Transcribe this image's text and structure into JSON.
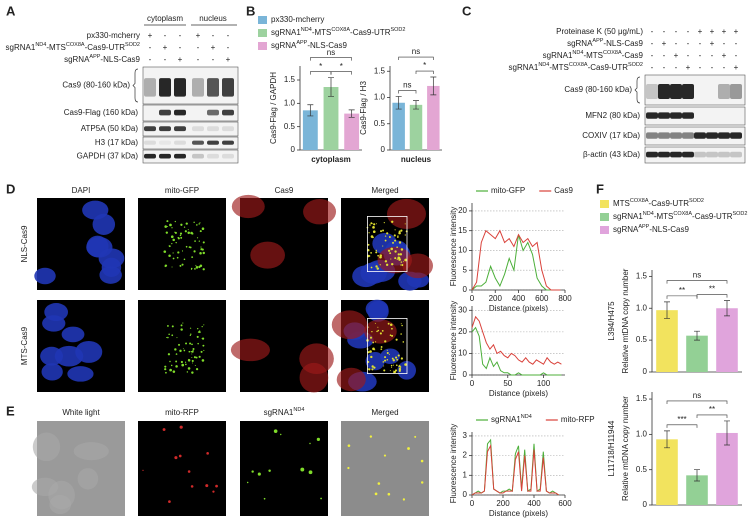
{
  "panel_a": {
    "letter": "A",
    "groups": [
      "cytoplasm",
      "nucleus"
    ],
    "conditions": [
      {
        "label": [
          "px330-mcherry"
        ],
        "marks": [
          "+",
          "-",
          "-",
          "+",
          "-",
          "-"
        ]
      },
      {
        "label": [
          "sgRNA1",
          "ND4",
          "-MTS",
          "COX8A",
          "-Cas9-UTR",
          "SOD2"
        ],
        "marks": [
          "-",
          "+",
          "-",
          "-",
          "+",
          "-"
        ]
      },
      {
        "label": [
          "sgRNA",
          "APP",
          "-NLS-Cas9"
        ],
        "marks": [
          "-",
          "-",
          "+",
          "-",
          "-",
          "+"
        ]
      }
    ],
    "blots": [
      "Cas9 (80-160 kDa)",
      "Cas9-Flag (160 kDa)",
      "ATP5A (50 kDa)",
      "H3 (17 kDa)",
      "GAPDH (37 kDa)"
    ]
  },
  "panel_b": {
    "letter": "B",
    "legend": [
      [
        "px330-mcherry"
      ],
      [
        "sgRNA1",
        "ND4",
        "-MTS",
        "COX8A",
        "-Cas9-UTR",
        "SOD2"
      ],
      [
        "sgRNA",
        "APP",
        "-NLS-Cas9"
      ]
    ]
  },
  "panel_c": {
    "letter": "C",
    "conditions": [
      {
        "label": [
          "Proteinase K (50 μg/mL)"
        ],
        "marks": [
          "-",
          "-",
          "-",
          "-",
          "+",
          "+",
          "+",
          "+"
        ]
      },
      {
        "label": [
          "sgRNA",
          "APP",
          "-NLS-Cas9"
        ],
        "marks": [
          "-",
          "+",
          "-",
          "-",
          "-",
          "+",
          "-",
          "-"
        ]
      },
      {
        "label": [
          "sgRNA1",
          "ND4",
          "-MTS",
          "COX8A",
          "-Cas9"
        ],
        "marks": [
          "-",
          "-",
          "+",
          "-",
          "-",
          "-",
          "+",
          "-"
        ]
      },
      {
        "label": [
          "sgRNA1",
          "ND4",
          "-MTS",
          "COX8A",
          "-Cas9-UTR",
          "SOD2"
        ],
        "marks": [
          "-",
          "-",
          "-",
          "+",
          "-",
          "-",
          "-",
          "+"
        ]
      }
    ],
    "blots": [
      "Cas9 (80-160 kDa)",
      "MFN2 (80 kDa)",
      "COXIV (17 kDa)",
      "β-actin (43 kDa)"
    ]
  },
  "panel_d": {
    "letter": "D",
    "channels": [
      [
        "DAPI"
      ],
      [
        "mito-GFP"
      ],
      [
        "Cas9"
      ],
      [
        "Merged"
      ]
    ],
    "rows": [
      "NLS-Cas9",
      "MTS-Cas9"
    ]
  },
  "panel_e": {
    "letter": "E",
    "channels": [
      [
        "White light"
      ],
      [
        "mito-RFP"
      ],
      [
        "sgRNA1",
        "ND4"
      ],
      [
        "Merged"
      ]
    ]
  },
  "panel_f": {
    "letter": "F",
    "legend": [
      [
        "MTS",
        "COX8A",
        "-Cas9-UTR",
        "SOD2"
      ],
      [
        "sgRNA1",
        "ND4",
        "-MTS",
        "COX8A",
        "-Cas9-UTR",
        "SOD2"
      ],
      [
        "sgRNA",
        "APP",
        "-NLS-Cas9"
      ]
    ]
  },
  "chart_data": [
    {
      "type": "bar",
      "values": [
        0.85,
        1.35,
        0.78
      ],
      "errors": [
        0.12,
        0.2,
        0.08
      ],
      "colors": [
        "#7ab5d8",
        "#9dd29f",
        "#e3a6d3"
      ],
      "ylim": [
        0,
        1.8
      ],
      "yticks": [
        0,
        0.5,
        {
          "value": 1,
          "label": "1.0"
        },
        1.5
      ],
      "ylabel": "Cas9-Flag / GAPDH",
      "xlabel": "cytoplasm",
      "significance": {
        "0-2": "ns",
        "0-1": "*",
        "1-2": "*"
      }
    },
    {
      "type": "bar",
      "values": [
        0.9,
        0.86,
        1.22
      ],
      "errors": [
        0.12,
        0.08,
        0.17
      ],
      "colors": [
        "#7ab5d8",
        "#9dd29f",
        "#e3a6d3"
      ],
      "ylim": [
        0,
        1.6
      ],
      "yticks": [
        0,
        0.5,
        {
          "value": 1,
          "label": "1.0"
        },
        1.5
      ],
      "ylabel": "Cas9-Flag / H3",
      "xlabel": "nucleus",
      "significance": {
        "0-2": "ns",
        "0-1": "ns",
        "1-2": "*"
      }
    },
    {
      "type": "line",
      "x": [
        0,
        40,
        80,
        120,
        160,
        200,
        240,
        280,
        320,
        360,
        400,
        440,
        480,
        520,
        560,
        600,
        640,
        680,
        720,
        760
      ],
      "series": [
        {
          "name": "mito-GFP",
          "color": "#4caf3a",
          "values": [
            0,
            1,
            1,
            2,
            6,
            3,
            1,
            4,
            8,
            5,
            14,
            10,
            12,
            9,
            3,
            1,
            0,
            0,
            0,
            0
          ]
        },
        {
          "name": "Cas9",
          "color": "#d9413a",
          "values": [
            0,
            2,
            12,
            15,
            14,
            13,
            15,
            12,
            13,
            11,
            14,
            12,
            13,
            11,
            12,
            5,
            1,
            0,
            0,
            0
          ]
        }
      ],
      "xlim": [
        0,
        800
      ],
      "ylim": [
        0,
        22
      ],
      "xticks": [
        0,
        200,
        400,
        600,
        800
      ],
      "yticks": [
        0,
        5,
        10,
        15,
        20
      ],
      "grid": true,
      "xlabel": "Distance (pixels)",
      "ylabel": "Fluorescence intensity"
    },
    {
      "type": "line",
      "x": [
        0,
        5,
        10,
        15,
        20,
        25,
        30,
        35,
        40,
        45,
        50,
        55,
        60,
        65,
        70,
        75,
        80,
        85,
        90,
        95,
        100,
        105,
        110,
        115,
        120,
        125
      ],
      "series": [
        {
          "color": "#4caf3a",
          "values": [
            20,
            22,
            18,
            5,
            3,
            8,
            4,
            6,
            2,
            1,
            1,
            0,
            0,
            1,
            0,
            0,
            0,
            0,
            0,
            0,
            1,
            0,
            0,
            0,
            0,
            0
          ]
        },
        {
          "color": "#d9413a",
          "values": [
            22,
            27,
            25,
            20,
            15,
            12,
            14,
            10,
            11,
            9,
            8,
            10,
            9,
            7,
            6,
            8,
            6,
            5,
            7,
            6,
            5,
            8,
            6,
            5,
            6,
            5
          ]
        }
      ],
      "xlim": [
        0,
        130
      ],
      "ylim": [
        0,
        32
      ],
      "xticks": [
        0,
        50,
        100
      ],
      "yticks": [
        0,
        10,
        20,
        30
      ],
      "grid": true,
      "xlabel": "Distance (pixels)",
      "ylabel": "Fluorescence intensity"
    },
    {
      "type": "line",
      "x": [
        0,
        20,
        40,
        60,
        80,
        100,
        120,
        140,
        160,
        180,
        200,
        220,
        240,
        260,
        280,
        300,
        320,
        340,
        360,
        380,
        400,
        420,
        440,
        460,
        480,
        500,
        520,
        540,
        560
      ],
      "series": [
        {
          "name": [
            "sgRNA1",
            "ND4"
          ],
          "color": "#4caf3a",
          "values": [
            0,
            0.1,
            0.2,
            0.1,
            0.2,
            2.6,
            2.8,
            0.3,
            0.2,
            0.1,
            0.2,
            0.2,
            0.3,
            0.2,
            2.1,
            2.5,
            0.3,
            2.3,
            0.2,
            0.3,
            2.6,
            0.2,
            0.3,
            2.2,
            0.2,
            0.1,
            0.2,
            0.1,
            0
          ]
        },
        {
          "name": "mito-RFP",
          "color": "#d9413a",
          "values": [
            0,
            0.1,
            0.1,
            0.1,
            0.2,
            2.2,
            2.5,
            0.3,
            0.2,
            0.1,
            0.1,
            0.2,
            0.2,
            0.2,
            1.8,
            2.2,
            0.2,
            2.0,
            0.2,
            0.2,
            2.3,
            0.2,
            0.2,
            1.9,
            0.2,
            0.1,
            0.1,
            0.1,
            0
          ]
        }
      ],
      "xlim": [
        0,
        600
      ],
      "ylim": [
        0,
        3.2
      ],
      "xticks": [
        0,
        200,
        400,
        600
      ],
      "yticks": [
        0,
        1,
        2,
        3
      ],
      "grid": true,
      "xlabel": "Distance (pixels)",
      "ylabel": "Fluorescence intensity"
    },
    {
      "type": "bar",
      "values": [
        0.97,
        0.57,
        1.0
      ],
      "errors": [
        0.13,
        0.07,
        0.12
      ],
      "colors": [
        "#f2e35e",
        "#93d095",
        "#e0a4dc"
      ],
      "ylim": [
        0,
        1.6
      ],
      "yticks": [
        0,
        0.5,
        {
          "value": 1,
          "label": "1.0"
        },
        1.5
      ],
      "ylabel": "Relative mtDNA copy number",
      "region": "L394/H475",
      "significance": {
        "0-2": "ns",
        "0-1": "**",
        "1-2": "**"
      }
    },
    {
      "type": "bar",
      "values": [
        0.93,
        0.42,
        1.02
      ],
      "errors": [
        0.12,
        0.08,
        0.17
      ],
      "colors": [
        "#f2e35e",
        "#93d095",
        "#e0a4dc"
      ],
      "ylim": [
        0,
        1.6
      ],
      "yticks": [
        0,
        0.5,
        {
          "value": 1,
          "label": "1.0"
        },
        1.5
      ],
      "ylabel": "Relative mtDNA copy number",
      "region": "L11718/H11944",
      "significance": {
        "0-2": "ns",
        "0-1": "***",
        "1-2": "**"
      }
    }
  ]
}
